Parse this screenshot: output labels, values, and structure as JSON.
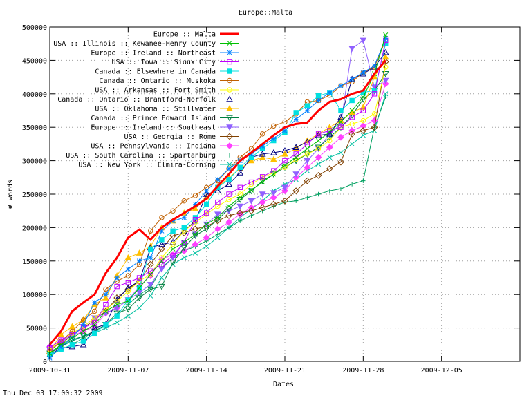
{
  "chart_data": {
    "type": "line",
    "title": "Europe::Malta",
    "xlabel": "Dates",
    "ylabel": "# words",
    "footer": "Thu Dec 03 17:00:32 2009",
    "xlim": [
      0,
      42
    ],
    "ylim": [
      0,
      500000
    ],
    "grid": true,
    "legend_position": "top-left-inside",
    "x_ticks": [
      {
        "pos": 0,
        "label": "2009-10-31"
      },
      {
        "pos": 7,
        "label": "2009-11-07"
      },
      {
        "pos": 14,
        "label": "2009-11-14"
      },
      {
        "pos": 21,
        "label": "2009-11-21"
      },
      {
        "pos": 28,
        "label": "2009-11-28"
      },
      {
        "pos": 35,
        "label": "2009-12-05"
      }
    ],
    "y_ticks": [
      {
        "value": 0,
        "label": "0"
      },
      {
        "value": 50000,
        "label": "50000"
      },
      {
        "value": 100000,
        "label": "100000"
      },
      {
        "value": 150000,
        "label": "150000"
      },
      {
        "value": 200000,
        "label": "200000"
      },
      {
        "value": 250000,
        "label": "250000"
      },
      {
        "value": 300000,
        "label": "300000"
      },
      {
        "value": 350000,
        "label": "350000"
      },
      {
        "value": 400000,
        "label": "400000"
      },
      {
        "value": 450000,
        "label": "450000"
      },
      {
        "value": 500000,
        "label": "500000"
      }
    ],
    "x": [
      0,
      1,
      2,
      3,
      4,
      5,
      6,
      7,
      8,
      9,
      10,
      11,
      12,
      13,
      14,
      15,
      16,
      17,
      18,
      19,
      20,
      21,
      22,
      23,
      24,
      25,
      26,
      27,
      28,
      29,
      30
    ],
    "series": [
      {
        "name": "Europe :: Malta",
        "color": "#ff0000",
        "marker": "none",
        "width": 3,
        "values": [
          25000,
          45000,
          75000,
          88000,
          100000,
          132000,
          155000,
          185000,
          197000,
          182000,
          200000,
          212000,
          222000,
          232000,
          243000,
          262000,
          280000,
          300000,
          312000,
          325000,
          338000,
          350000,
          355000,
          357000,
          375000,
          388000,
          392000,
          400000,
          405000,
          430000,
          450000
        ]
      },
      {
        "name": "USA :: Illinois :: Kewanee-Henry County",
        "color": "#00c000",
        "marker": "x",
        "values": [
          12000,
          25000,
          35000,
          45000,
          55000,
          75000,
          85000,
          90000,
          110000,
          130000,
          150000,
          168000,
          178000,
          190000,
          205000,
          215000,
          232000,
          245000,
          256000,
          268000,
          280000,
          293000,
          305000,
          318000,
          330000,
          343000,
          358000,
          375000,
          395000,
          430000,
          488000
        ]
      },
      {
        "name": "Europe :: Ireland :: Northeast",
        "color": "#0080ff",
        "marker": "star",
        "values": [
          5000,
          22000,
          35000,
          55000,
          88000,
          100000,
          125000,
          138000,
          150000,
          155000,
          195000,
          210000,
          215000,
          235000,
          255000,
          272000,
          288000,
          300000,
          310000,
          322000,
          333000,
          345000,
          362000,
          375000,
          390000,
          402000,
          412000,
          422000,
          432000,
          442000,
          483000
        ]
      },
      {
        "name": "USA :: Iowa :: Sioux City",
        "color": "#c000ff",
        "marker": "square",
        "values": [
          20000,
          32000,
          40000,
          50000,
          58000,
          85000,
          112000,
          118000,
          125000,
          135000,
          145000,
          158000,
          178000,
          212000,
          222000,
          238000,
          250000,
          260000,
          268000,
          276000,
          285000,
          300000,
          310000,
          325000,
          340000,
          345000,
          350000,
          365000,
          375000,
          400000,
          480000
        ]
      },
      {
        "name": "Canada :: Elsewhere in Canada",
        "color": "#00e0e0",
        "marker": "filled-square",
        "values": [
          10000,
          18000,
          25000,
          30000,
          42000,
          55000,
          68000,
          92000,
          110000,
          168000,
          182000,
          195000,
          200000,
          215000,
          235000,
          260000,
          272000,
          290000,
          305000,
          318000,
          330000,
          342000,
          372000,
          382000,
          397000,
          402000,
          375000,
          390000,
          402000,
          405000,
          475000
        ]
      },
      {
        "name": "Canada :: Ontario :: Muskoka",
        "color": "#c06000",
        "marker": "circle",
        "values": [
          15000,
          30000,
          45000,
          62000,
          75000,
          108000,
          120000,
          128000,
          145000,
          195000,
          215000,
          225000,
          240000,
          248000,
          260000,
          270000,
          288000,
          305000,
          318000,
          340000,
          352000,
          358000,
          370000,
          388000,
          390000,
          398000,
          412000,
          418000,
          432000,
          440000,
          480000
        ]
      },
      {
        "name": "USA :: Arkansas :: Fort Smith",
        "color": "#ffff00",
        "marker": "circle",
        "values": [
          18000,
          30000,
          42000,
          52000,
          65000,
          78000,
          90000,
          105000,
          120000,
          130000,
          155000,
          175000,
          195000,
          208000,
          220000,
          232000,
          242000,
          250000,
          265000,
          275000,
          282000,
          290000,
          302000,
          310000,
          318000,
          330000,
          350000,
          355000,
          360000,
          370000,
          440000
        ]
      },
      {
        "name": "Canada :: Ontario :: Brantford-Norfolk",
        "color": "#000080",
        "marker": "triangle",
        "values": [
          10000,
          20000,
          22000,
          25000,
          50000,
          55000,
          92000,
          110000,
          120000,
          170000,
          175000,
          178000,
          195000,
          210000,
          250000,
          255000,
          265000,
          282000,
          305000,
          310000,
          312000,
          315000,
          320000,
          328000,
          338000,
          340000,
          365000,
          422000,
          430000,
          440000,
          462000
        ]
      },
      {
        "name": "USA :: Oklahoma :: Stillwater",
        "color": "#ffc000",
        "marker": "filled-triangle",
        "values": [
          15000,
          40000,
          52000,
          62000,
          85000,
          95000,
          128000,
          155000,
          162000,
          172000,
          200000,
          210000,
          222000,
          228000,
          246000,
          260000,
          275000,
          288000,
          300000,
          305000,
          302000,
          310000,
          318000,
          330000,
          340000,
          350000,
          360000,
          372000,
          380000,
          425000,
          455000
        ]
      },
      {
        "name": "Canada :: Prince Edward Island",
        "color": "#008040",
        "marker": "inv-triangle",
        "values": [
          12000,
          22000,
          32000,
          38000,
          45000,
          55000,
          72000,
          78000,
          95000,
          108000,
          112000,
          148000,
          170000,
          188000,
          198000,
          212000,
          228000,
          242000,
          255000,
          270000,
          280000,
          290000,
          300000,
          310000,
          320000,
          335000,
          350000,
          368000,
          392000,
          405000,
          430000
        ]
      },
      {
        "name": "Europe :: Ireland :: Southeast",
        "color": "#9060ff",
        "marker": "filled-inv-triangle",
        "values": [
          18000,
          28000,
          40000,
          52000,
          65000,
          72000,
          80000,
          92000,
          103000,
          115000,
          138000,
          155000,
          178000,
          190000,
          205000,
          220000,
          225000,
          232000,
          240000,
          250000,
          252000,
          260000,
          280000,
          300000,
          318000,
          340000,
          355000,
          468000,
          480000,
          410000,
          420000
        ]
      },
      {
        "name": "USA :: Georgia :: Rome",
        "color": "#804000",
        "marker": "diamond",
        "values": [
          12000,
          25000,
          40000,
          50000,
          62000,
          75000,
          95000,
          108000,
          120000,
          145000,
          168000,
          188000,
          192000,
          198000,
          202000,
          210000,
          218000,
          222000,
          225000,
          230000,
          235000,
          240000,
          255000,
          270000,
          278000,
          288000,
          298000,
          340000,
          345000,
          350000,
          448000
        ]
      },
      {
        "name": "USA :: Pennsylvania :: Indiana",
        "color": "#ff40ff",
        "marker": "filled-diamond",
        "values": [
          22000,
          30000,
          38000,
          45000,
          52000,
          72000,
          80000,
          92000,
          112000,
          128000,
          152000,
          160000,
          165000,
          175000,
          185000,
          198000,
          208000,
          220000,
          230000,
          238000,
          245000,
          255000,
          275000,
          290000,
          305000,
          320000,
          335000,
          345000,
          352000,
          360000,
          415000
        ]
      },
      {
        "name": "USA :: South Carolina :: Spartanburg",
        "color": "#00a060",
        "marker": "plus",
        "values": [
          8000,
          18000,
          25000,
          35000,
          45000,
          55000,
          68000,
          85000,
          100000,
          110000,
          140000,
          155000,
          165000,
          172000,
          180000,
          190000,
          200000,
          210000,
          218000,
          225000,
          232000,
          238000,
          240000,
          245000,
          250000,
          255000,
          258000,
          265000,
          270000,
          350000,
          395000
        ]
      },
      {
        "name": "USA :: New York :: Elmira-Corning",
        "color": "#00c0a0",
        "marker": "x",
        "values": [
          15000,
          22000,
          30000,
          38000,
          42000,
          50000,
          58000,
          68000,
          80000,
          98000,
          125000,
          145000,
          155000,
          162000,
          172000,
          185000,
          200000,
          215000,
          228000,
          240000,
          255000,
          265000,
          272000,
          285000,
          295000,
          305000,
          312000,
          325000,
          338000,
          345000,
          400000
        ]
      }
    ]
  }
}
